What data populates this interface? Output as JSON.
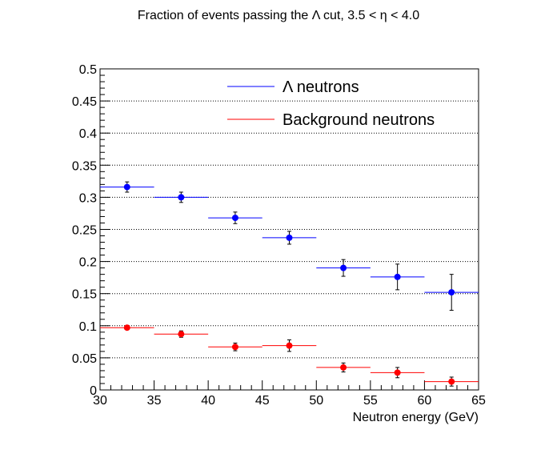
{
  "chart_data": {
    "type": "scatter",
    "title": "Fraction of events passing the Λ cut, 3.5 < η < 4.0",
    "xlabel": "Neutron energy (GeV)",
    "ylabel": "",
    "xlim": [
      30,
      65
    ],
    "ylim": [
      0,
      0.5
    ],
    "x_ticks": [
      "30",
      "35",
      "40",
      "45",
      "50",
      "55",
      "60",
      "65"
    ],
    "y_ticks": [
      "0",
      "0.05",
      "0.1",
      "0.15",
      "0.2",
      "0.25",
      "0.3",
      "0.35",
      "0.4",
      "0.45",
      "0.5"
    ],
    "grid": "horizontal dotted",
    "legend_position": "top-right",
    "series": [
      {
        "name": "Λ neutrons",
        "color": "#0000ff",
        "points": [
          {
            "x": 32.5,
            "y": 0.316,
            "xerr": 2.5,
            "yerr": 0.008
          },
          {
            "x": 37.5,
            "y": 0.3,
            "xerr": 2.5,
            "yerr": 0.008
          },
          {
            "x": 42.5,
            "y": 0.268,
            "xerr": 2.5,
            "yerr": 0.009
          },
          {
            "x": 47.5,
            "y": 0.237,
            "xerr": 2.5,
            "yerr": 0.01
          },
          {
            "x": 52.5,
            "y": 0.19,
            "xerr": 2.5,
            "yerr": 0.013
          },
          {
            "x": 57.5,
            "y": 0.176,
            "xerr": 2.5,
            "yerr": 0.02
          },
          {
            "x": 62.5,
            "y": 0.152,
            "xerr": 2.5,
            "yerr": 0.028
          }
        ]
      },
      {
        "name": "Background neutrons",
        "color": "#ff0000",
        "points": [
          {
            "x": 32.5,
            "y": 0.097,
            "xerr": 2.5,
            "yerr": 0.003
          },
          {
            "x": 37.5,
            "y": 0.087,
            "xerr": 2.5,
            "yerr": 0.005
          },
          {
            "x": 42.5,
            "y": 0.067,
            "xerr": 2.5,
            "yerr": 0.006
          },
          {
            "x": 47.5,
            "y": 0.069,
            "xerr": 2.5,
            "yerr": 0.009
          },
          {
            "x": 52.5,
            "y": 0.035,
            "xerr": 2.5,
            "yerr": 0.007
          },
          {
            "x": 57.5,
            "y": 0.027,
            "xerr": 2.5,
            "yerr": 0.008
          },
          {
            "x": 62.5,
            "y": 0.013,
            "xerr": 2.5,
            "yerr": 0.007
          }
        ]
      }
    ]
  }
}
